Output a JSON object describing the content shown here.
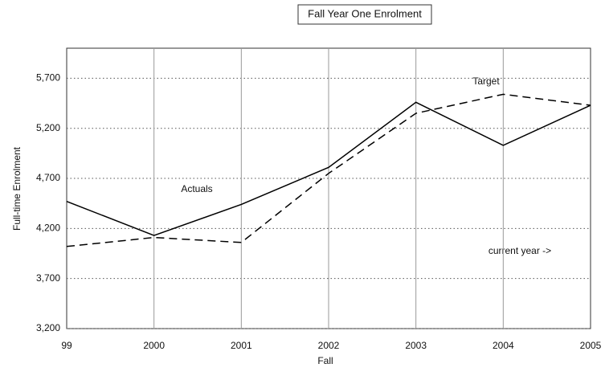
{
  "chart_data": {
    "type": "line",
    "title": "Fall Year One Enrolment",
    "x_label": "Fall",
    "y_label": "Full-time Enrolment",
    "categories": [
      "99",
      "2000",
      "2001",
      "2002",
      "2003",
      "2004",
      "2005"
    ],
    "series": [
      {
        "name": "Actuals",
        "color": "#000000",
        "style": "solid",
        "values": [
          4470,
          4130,
          4440,
          4810,
          5460,
          5030,
          5430
        ]
      },
      {
        "name": "Target",
        "color": "#000000",
        "style": "dashed",
        "values": [
          4020,
          4110,
          4060,
          4750,
          5350,
          5540,
          5430
        ]
      }
    ],
    "annotations": [
      "current year ->"
    ],
    "ylim": [
      3200,
      6000
    ],
    "yticks": [
      {
        "value": 3200,
        "label": "3,200"
      },
      {
        "value": 3700,
        "label": "3,700"
      },
      {
        "value": 4200,
        "label": "4,200"
      },
      {
        "value": 4700,
        "label": "4,700"
      },
      {
        "value": 5200,
        "label": "5,200"
      },
      {
        "value": 5700,
        "label": "5,700"
      }
    ],
    "grid": true
  }
}
